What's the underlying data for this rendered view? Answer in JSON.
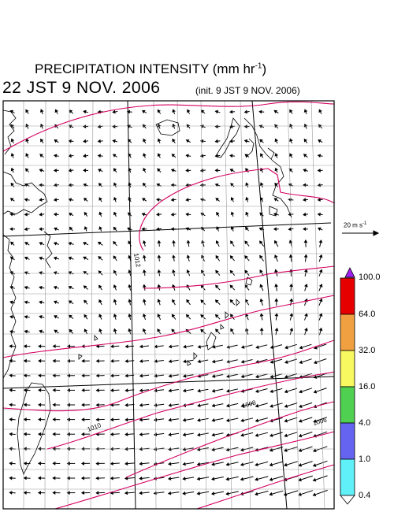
{
  "header": {
    "title": "PRECIPITATION INTENSITY (mm hr",
    "title_exp": "-1",
    "title_close": ")",
    "valid_time": "22 JST 9 NOV. 2006",
    "init_time": "(init. 9 JST 9 NOV. 2006)"
  },
  "wind_scale": {
    "label": "20 m s",
    "label_exp": "-1"
  },
  "isobars": {
    "labels": [
      "1012",
      "1010",
      "1008",
      "1006"
    ],
    "line_color": "#d40060"
  },
  "colorbar": {
    "levels": [
      "100.0",
      "64.0",
      "32.0",
      "16.0",
      "4.0",
      "1.0",
      "0.4"
    ],
    "colors": [
      "#a020f0",
      "#e60000",
      "#f0a040",
      "#f8f860",
      "#50d050",
      "#6464f0",
      "#60f0f8",
      "#ffffff"
    ]
  }
}
